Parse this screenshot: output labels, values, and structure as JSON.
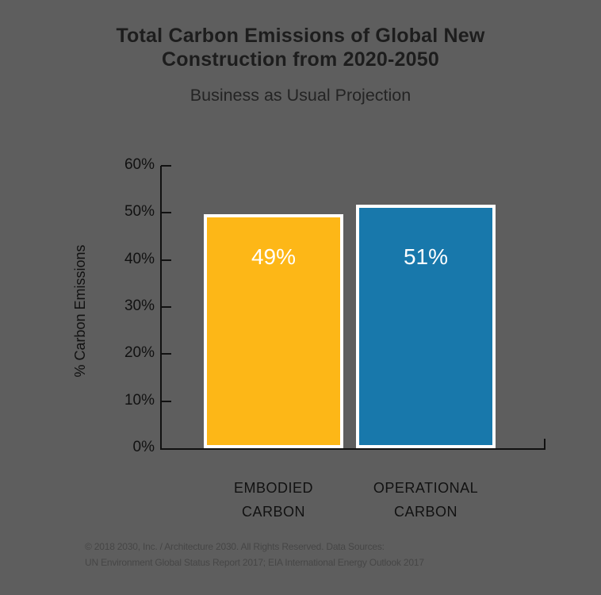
{
  "header": {
    "title_lines": [
      "Total Carbon Emissions of Global New",
      "Construction from 2020-2050"
    ],
    "subtitle": "Business as Usual Projection"
  },
  "chart_data": {
    "type": "bar",
    "title": "Total Carbon Emissions of Global New Construction from 2020-2050",
    "subtitle": "Business as Usual Projection",
    "categories": [
      "EMBODIED\nCARBON",
      "OPERATIONAL\nCARBON"
    ],
    "values": [
      49,
      51
    ],
    "value_labels": [
      "49%",
      "51%"
    ],
    "series_colors": [
      "#fdb717",
      "#1878ab"
    ],
    "bar_border_color": "#ffffff",
    "value_label_color": "#ffffff",
    "xlabel": "",
    "ylabel": "% Carbon Emissions",
    "ylim": [
      0,
      60
    ],
    "ytick_labels": [
      "0%",
      "10%",
      "20%",
      "30%",
      "40%",
      "50%",
      "60%"
    ],
    "grid": false,
    "legend": "none",
    "background_color": "#5e5e5e",
    "axis_color": "#111111"
  },
  "footer": {
    "lines": [
      "© 2018 2030, Inc. / Architecture 2030. All Rights Reserved. Data Sources:",
      "UN Environment Global Status Report 2017; EIA International Energy Outlook 2017"
    ]
  }
}
